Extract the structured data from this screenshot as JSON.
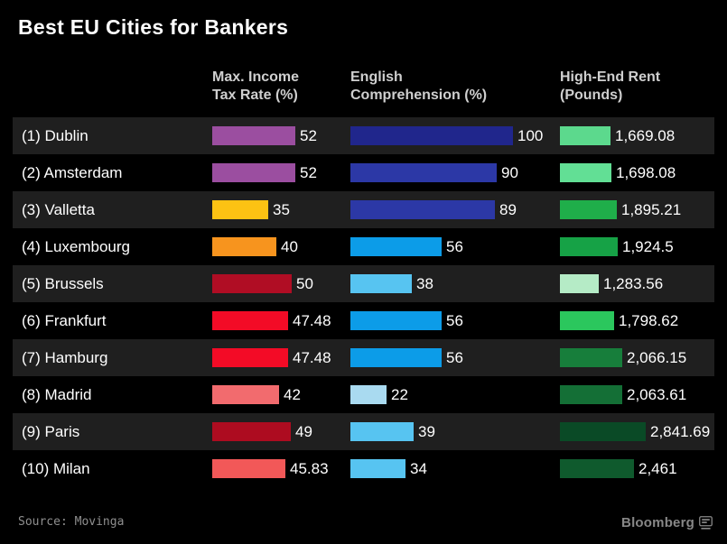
{
  "title": "Best EU Cities for Bankers",
  "source": "Source: Movinga",
  "brand": "Bloomberg",
  "columns": {
    "tax": {
      "line1": "Max. Income",
      "line2": "Tax Rate (%)"
    },
    "english": {
      "line1": "English",
      "line2": "Comprehension (%)"
    },
    "rent": {
      "line1": "High-End Rent",
      "line2": "(Pounds)"
    }
  },
  "chart_data": {
    "type": "bar",
    "title": "Best EU Cities for Bankers",
    "orientation": "horizontal",
    "grid": false,
    "legend": false,
    "categories": [
      "(1) Dublin",
      "(2) Amsterdam",
      "(3) Valletta",
      "(4) Luxembourg",
      "(5) Brussels",
      "(6) Frankfurt",
      "(7) Hamburg",
      "(8) Madrid",
      "(9) Paris",
      "(10) Milan"
    ],
    "series": [
      {
        "name": "Max. Income Tax Rate (%)",
        "axis_max": 52,
        "values": [
          52,
          52,
          35,
          40,
          50,
          47.48,
          47.48,
          42,
          49,
          45.83
        ]
      },
      {
        "name": "English Comprehension (%)",
        "axis_max": 100,
        "values": [
          100,
          90,
          89,
          56,
          38,
          56,
          56,
          22,
          39,
          34
        ]
      },
      {
        "name": "High-End Rent (Pounds)",
        "axis_max": 2841.69,
        "values": [
          1669.08,
          1698.08,
          1895.21,
          1924.5,
          1283.56,
          1798.62,
          2066.15,
          2063.61,
          2841.69,
          2461
        ]
      }
    ],
    "source": "Source: Movinga"
  },
  "colors": {
    "background": "#000000",
    "stripe": "#1f1f1f",
    "text": "#ffffff",
    "header_text": "#cfcfcf",
    "source_text": "#8f8f8f",
    "brand_text": "#878787"
  },
  "rows": [
    {
      "label": "(1) Dublin",
      "tax": 52,
      "tax_label": "52",
      "tax_color": "#9b4ea0",
      "english": 100,
      "english_label": "100",
      "english_color": "#20268c",
      "rent": 1669.08,
      "rent_label": "1,669.08",
      "rent_color": "#5cd98d"
    },
    {
      "label": "(2) Amsterdam",
      "tax": 52,
      "tax_label": "52",
      "tax_color": "#9b4ea0",
      "english": 90,
      "english_label": "90",
      "english_color": "#2c38a6",
      "rent": 1698.08,
      "rent_label": "1,698.08",
      "rent_color": "#62df95"
    },
    {
      "label": "(3) Valletta",
      "tax": 35,
      "tax_label": "35",
      "tax_color": "#fcc213",
      "english": 89,
      "english_label": "89",
      "english_color": "#2c38a6",
      "rent": 1895.21,
      "rent_label": "1,895.21",
      "rent_color": "#1fae4a"
    },
    {
      "label": "(4) Luxembourg",
      "tax": 40,
      "tax_label": "40",
      "tax_color": "#f7941e",
      "english": 56,
      "english_label": "56",
      "english_color": "#0c9ce8",
      "rent": 1924.5,
      "rent_label": "1,924.5",
      "rent_color": "#16a246"
    },
    {
      "label": "(5) Brussels",
      "tax": 50,
      "tax_label": "50",
      "tax_color": "#b00d24",
      "english": 38,
      "english_label": "38",
      "english_color": "#57c4f1",
      "rent": 1283.56,
      "rent_label": "1,283.56",
      "rent_color": "#b5ebc6"
    },
    {
      "label": "(6) Frankfurt",
      "tax": 47.48,
      "tax_label": "47.48",
      "tax_color": "#f30b26",
      "english": 56,
      "english_label": "56",
      "english_color": "#0c9ce8",
      "rent": 1798.62,
      "rent_label": "1,798.62",
      "rent_color": "#2bc75d"
    },
    {
      "label": "(7) Hamburg",
      "tax": 47.48,
      "tax_label": "47.48",
      "tax_color": "#f30b26",
      "english": 56,
      "english_label": "56",
      "english_color": "#0c9ce8",
      "rent": 2066.15,
      "rent_label": "2,066.15",
      "rent_color": "#177e3b"
    },
    {
      "label": "(8) Madrid",
      "tax": 42,
      "tax_label": "42",
      "tax_color": "#f26b6e",
      "english": 22,
      "english_label": "22",
      "english_color": "#a9daf0",
      "rent": 2063.61,
      "rent_label": "2,063.61",
      "rent_color": "#146f36"
    },
    {
      "label": "(9) Paris",
      "tax": 49,
      "tax_label": "49",
      "tax_color": "#ad0c20",
      "english": 39,
      "english_label": "39",
      "english_color": "#57c4f1",
      "rent": 2841.69,
      "rent_label": "2,841.69",
      "rent_color": "#0a4a26"
    },
    {
      "label": "(10) Milan",
      "tax": 45.83,
      "tax_label": "45.83",
      "tax_color": "#f25858",
      "english": 34,
      "english_label": "34",
      "english_color": "#57c4f1",
      "rent": 2461,
      "rent_label": "2,461",
      "rent_color": "#0f5a2d"
    }
  ]
}
